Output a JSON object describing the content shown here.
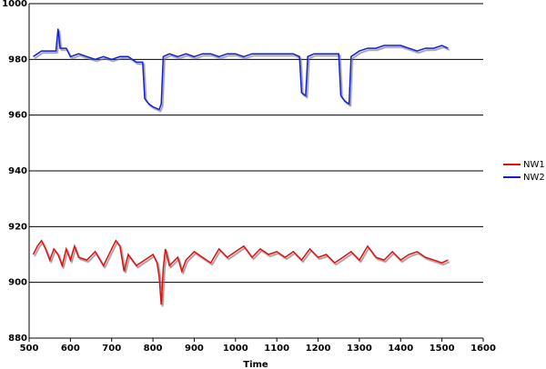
{
  "chart_data": {
    "type": "line",
    "x_label": "Time",
    "xlim": [
      500,
      1600
    ],
    "ylim": [
      880,
      1000
    ],
    "xticks": [
      500,
      600,
      700,
      800,
      900,
      1000,
      1100,
      1200,
      1300,
      1400,
      1500,
      1600
    ],
    "yticks": [
      880,
      900,
      920,
      940,
      960,
      980,
      1000
    ],
    "grid": true,
    "legend": "right",
    "series": [
      {
        "name": "NW1",
        "color": "#e01010",
        "x": [
          510,
          520,
          530,
          540,
          550,
          560,
          570,
          580,
          590,
          600,
          610,
          620,
          640,
          660,
          680,
          700,
          710,
          720,
          730,
          740,
          760,
          780,
          800,
          810,
          815,
          820,
          825,
          830,
          840,
          860,
          870,
          880,
          900,
          920,
          940,
          960,
          980,
          1000,
          1020,
          1040,
          1060,
          1080,
          1100,
          1120,
          1140,
          1160,
          1180,
          1200,
          1220,
          1240,
          1260,
          1280,
          1300,
          1320,
          1340,
          1360,
          1380,
          1400,
          1420,
          1440,
          1460,
          1480,
          1500,
          1515
        ],
        "values": [
          910,
          913,
          915,
          912,
          908,
          912,
          910,
          906,
          912,
          908,
          913,
          909,
          908,
          911,
          906,
          912,
          915,
          913,
          904,
          910,
          906,
          908,
          910,
          907,
          902,
          892,
          905,
          912,
          906,
          909,
          904,
          908,
          911,
          909,
          907,
          912,
          909,
          911,
          913,
          909,
          912,
          910,
          911,
          909,
          911,
          908,
          912,
          909,
          910,
          907,
          909,
          911,
          908,
          913,
          909,
          908,
          911,
          908,
          910,
          911,
          909,
          908,
          907,
          908
        ]
      },
      {
        "name": "NW2",
        "color": "#1020d0",
        "x": [
          510,
          530,
          550,
          565,
          570,
          575,
          590,
          600,
          620,
          640,
          660,
          680,
          700,
          720,
          740,
          760,
          775,
          780,
          790,
          800,
          815,
          820,
          825,
          840,
          860,
          880,
          900,
          920,
          940,
          960,
          980,
          1000,
          1020,
          1040,
          1060,
          1080,
          1100,
          1120,
          1140,
          1155,
          1160,
          1170,
          1175,
          1190,
          1210,
          1230,
          1250,
          1255,
          1265,
          1275,
          1280,
          1300,
          1320,
          1340,
          1360,
          1380,
          1400,
          1420,
          1440,
          1460,
          1480,
          1500,
          1515
        ],
        "values": [
          981,
          983,
          983,
          983,
          991,
          984,
          984,
          981,
          982,
          981,
          980,
          981,
          980,
          981,
          981,
          979,
          979,
          966,
          964,
          963,
          962,
          964,
          981,
          982,
          981,
          982,
          981,
          982,
          982,
          981,
          982,
          982,
          981,
          982,
          982,
          982,
          982,
          982,
          982,
          981,
          968,
          967,
          981,
          982,
          982,
          982,
          982,
          967,
          965,
          964,
          981,
          983,
          984,
          984,
          985,
          985,
          985,
          984,
          983,
          984,
          984,
          985,
          984
        ]
      }
    ]
  }
}
